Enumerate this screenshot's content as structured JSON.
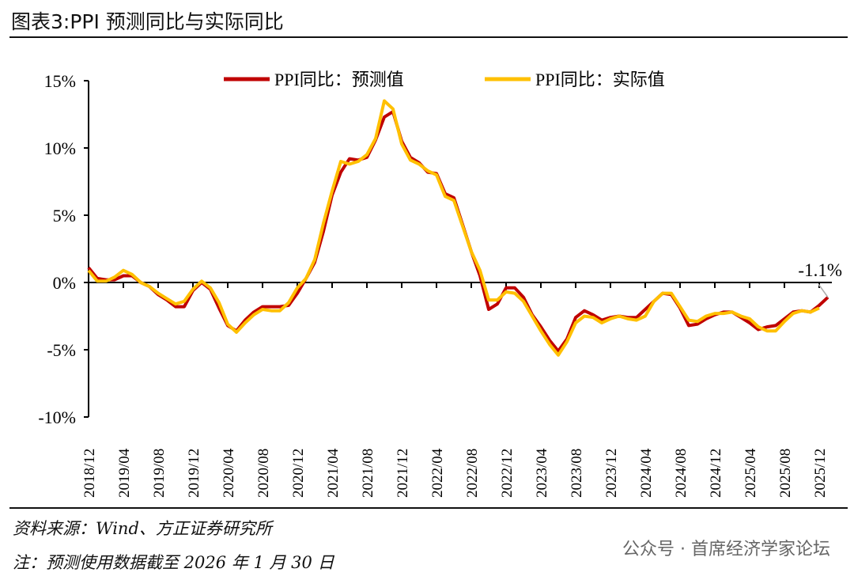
{
  "title": "图表3:PPI 预测同比与实际同比",
  "footer": {
    "source": "资料来源：Wind、方正证券研究所",
    "note": "注：预测使用数据截至 2026 年 1 月 30 日",
    "watermark": "公众号 · 首席经济学家论坛"
  },
  "chart_data": {
    "type": "line",
    "title": "图表3:PPI 预测同比与实际同比",
    "xlabel": "",
    "ylabel": "",
    "ylim": [
      -10,
      15
    ],
    "yticks": [
      {
        "v": 15,
        "label": "15%"
      },
      {
        "v": 10,
        "label": "10%"
      },
      {
        "v": 5,
        "label": "5%"
      },
      {
        "v": 0,
        "label": "0%"
      },
      {
        "v": -5,
        "label": "-5%"
      },
      {
        "v": -10,
        "label": "-10%"
      }
    ],
    "x_start": "2018/12",
    "xtick_labels": [
      "2018/12",
      "2019/04",
      "2019/08",
      "2019/12",
      "2020/04",
      "2020/08",
      "2020/12",
      "2021/04",
      "2021/08",
      "2021/12",
      "2022/04",
      "2022/08",
      "2022/12",
      "2023/04",
      "2023/08",
      "2023/12",
      "2024/04",
      "2024/08",
      "2024/12",
      "2025/04",
      "2025/08",
      "2025/12"
    ],
    "legend_position": "top",
    "annotation": {
      "label": "-1.1%",
      "x": "2026/01",
      "value": -1.1
    },
    "series": [
      {
        "name": "PPI同比：预测值",
        "color": "#C00000",
        "values": [
          1.1,
          0.3,
          0.2,
          0.2,
          0.5,
          0.5,
          0.0,
          -0.3,
          -0.9,
          -1.3,
          -1.8,
          -1.8,
          -0.6,
          0.0,
          -0.5,
          -1.9,
          -3.2,
          -3.6,
          -2.8,
          -2.2,
          -1.8,
          -1.8,
          -1.8,
          -1.7,
          -0.8,
          0.3,
          1.5,
          3.8,
          6.5,
          8.2,
          9.2,
          9.1,
          9.3,
          10.6,
          12.3,
          12.7,
          10.5,
          9.3,
          8.9,
          8.2,
          8.1,
          6.6,
          6.3,
          4.3,
          2.3,
          0.5,
          -2.0,
          -1.6,
          -0.4,
          -0.4,
          -1.1,
          -2.4,
          -3.3,
          -4.3,
          -5.1,
          -4.2,
          -2.6,
          -2.1,
          -2.4,
          -2.8,
          -2.6,
          -2.5,
          -2.6,
          -2.6,
          -2.0,
          -1.4,
          -0.8,
          -0.9,
          -1.9,
          -3.2,
          -3.1,
          -2.7,
          -2.4,
          -2.2,
          -2.2,
          -2.6,
          -3.0,
          -3.5,
          -3.3,
          -3.2,
          -2.7,
          -2.2,
          -2.1,
          -2.2,
          -1.7,
          -1.1
        ]
      },
      {
        "name": "PPI同比：实际值",
        "color": "#FFC000",
        "values": [
          0.9,
          0.1,
          0.1,
          0.4,
          0.9,
          0.6,
          0.0,
          -0.3,
          -0.8,
          -1.2,
          -1.6,
          -1.4,
          -0.5,
          0.1,
          -0.4,
          -1.5,
          -3.1,
          -3.7,
          -3.0,
          -2.4,
          -2.0,
          -2.1,
          -2.1,
          -1.5,
          -0.4,
          0.3,
          1.7,
          4.4,
          6.8,
          9.0,
          8.8,
          9.0,
          9.5,
          10.7,
          13.5,
          12.9,
          10.3,
          9.1,
          8.8,
          8.3,
          8.0,
          6.4,
          6.1,
          4.2,
          2.3,
          0.9,
          -1.3,
          -1.3,
          -0.7,
          -0.8,
          -1.4,
          -2.5,
          -3.6,
          -4.6,
          -5.4,
          -4.4,
          -3.0,
          -2.5,
          -2.6,
          -3.0,
          -2.7,
          -2.5,
          -2.7,
          -2.8,
          -2.5,
          -1.4,
          -0.8,
          -0.8,
          -1.8,
          -2.8,
          -2.9,
          -2.5,
          -2.3,
          -2.3,
          -2.2,
          -2.5,
          -2.7,
          -3.3,
          -3.6,
          -3.6,
          -2.9,
          -2.3,
          -2.1,
          -2.2,
          -1.9
        ]
      }
    ]
  }
}
